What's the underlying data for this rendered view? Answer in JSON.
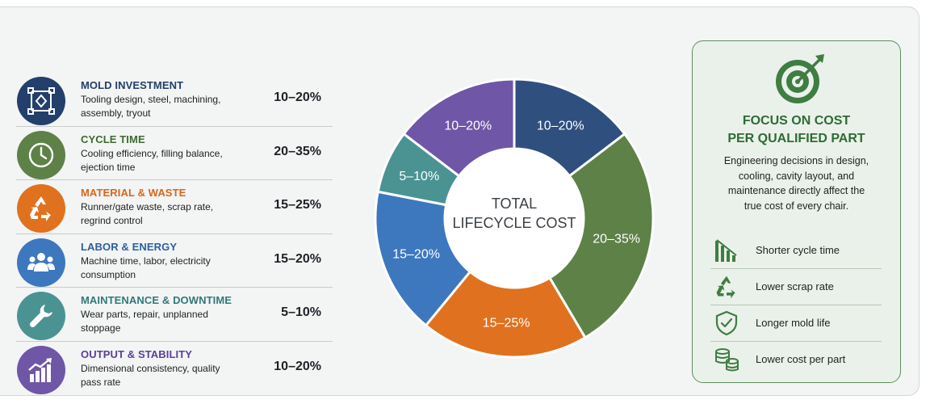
{
  "colors": {
    "mold": "#233f6b",
    "cycle": "#5d8147",
    "material": "#e0711f",
    "labor": "#3d78bf",
    "maintenance": "#4b9393",
    "output": "#6f56a6",
    "focus": "#2e6b34"
  },
  "categories": [
    {
      "title": "MOLD INVESTMENT",
      "description": "Tooling design, steel, machining, assembly, tryout",
      "range": "10–20%",
      "icon": "mold-icon"
    },
    {
      "title": "CYCLE TIME",
      "description": "Cooling efficiency, filling balance, ejection time",
      "range": "20–35%",
      "icon": "clock-icon"
    },
    {
      "title": "MATERIAL & WASTE",
      "description": "Runner/gate waste, scrap rate, regrind control",
      "range": "15–25%",
      "icon": "recycle-icon"
    },
    {
      "title": "LABOR & ENERGY",
      "description": "Machine time, labor, electricity consumption",
      "range": "15–20%",
      "icon": "people-icon"
    },
    {
      "title": "MAINTENANCE & DOWNTIME",
      "description": "Wear parts, repair, unplanned stoppage",
      "range": "5–10%",
      "icon": "wrench-icon"
    },
    {
      "title": "OUTPUT & STABILITY",
      "description": "Dimensional consistency, quality pass rate",
      "range": "10–20%",
      "icon": "growth-chart-icon"
    }
  ],
  "chart_data": {
    "type": "pie",
    "donut": true,
    "center_label": [
      "TOTAL",
      "LIFECYCLE COST"
    ],
    "slices": [
      {
        "label": "10–20%",
        "value": 15,
        "color": "#2f4f7f"
      },
      {
        "label": "20–35%",
        "value": 27.5,
        "color": "#5d8147"
      },
      {
        "label": "15–25%",
        "value": 20,
        "color": "#e0711f"
      },
      {
        "label": "15–20%",
        "value": 17.5,
        "color": "#3d78bf"
      },
      {
        "label": "5–10%",
        "value": 7.5,
        "color": "#4b9393"
      },
      {
        "label": "10–20%",
        "value": 15,
        "color": "#6f56a6"
      }
    ]
  },
  "focus": {
    "title": "FOCUS ON COST\nPER QUALIFIED PART",
    "text": "Engineering decisions in design, cooling, cavity layout, and maintenance directly affect the true cost of every chair.",
    "icon": "target-icon",
    "benefits": [
      {
        "label": "Shorter cycle time",
        "icon": "bar-chart-down-icon"
      },
      {
        "label": "Lower scrap rate",
        "icon": "recycle-icon"
      },
      {
        "label": "Longer mold life",
        "icon": "shield-check-icon"
      },
      {
        "label": "Lower cost per part",
        "icon": "coins-icon"
      }
    ]
  }
}
